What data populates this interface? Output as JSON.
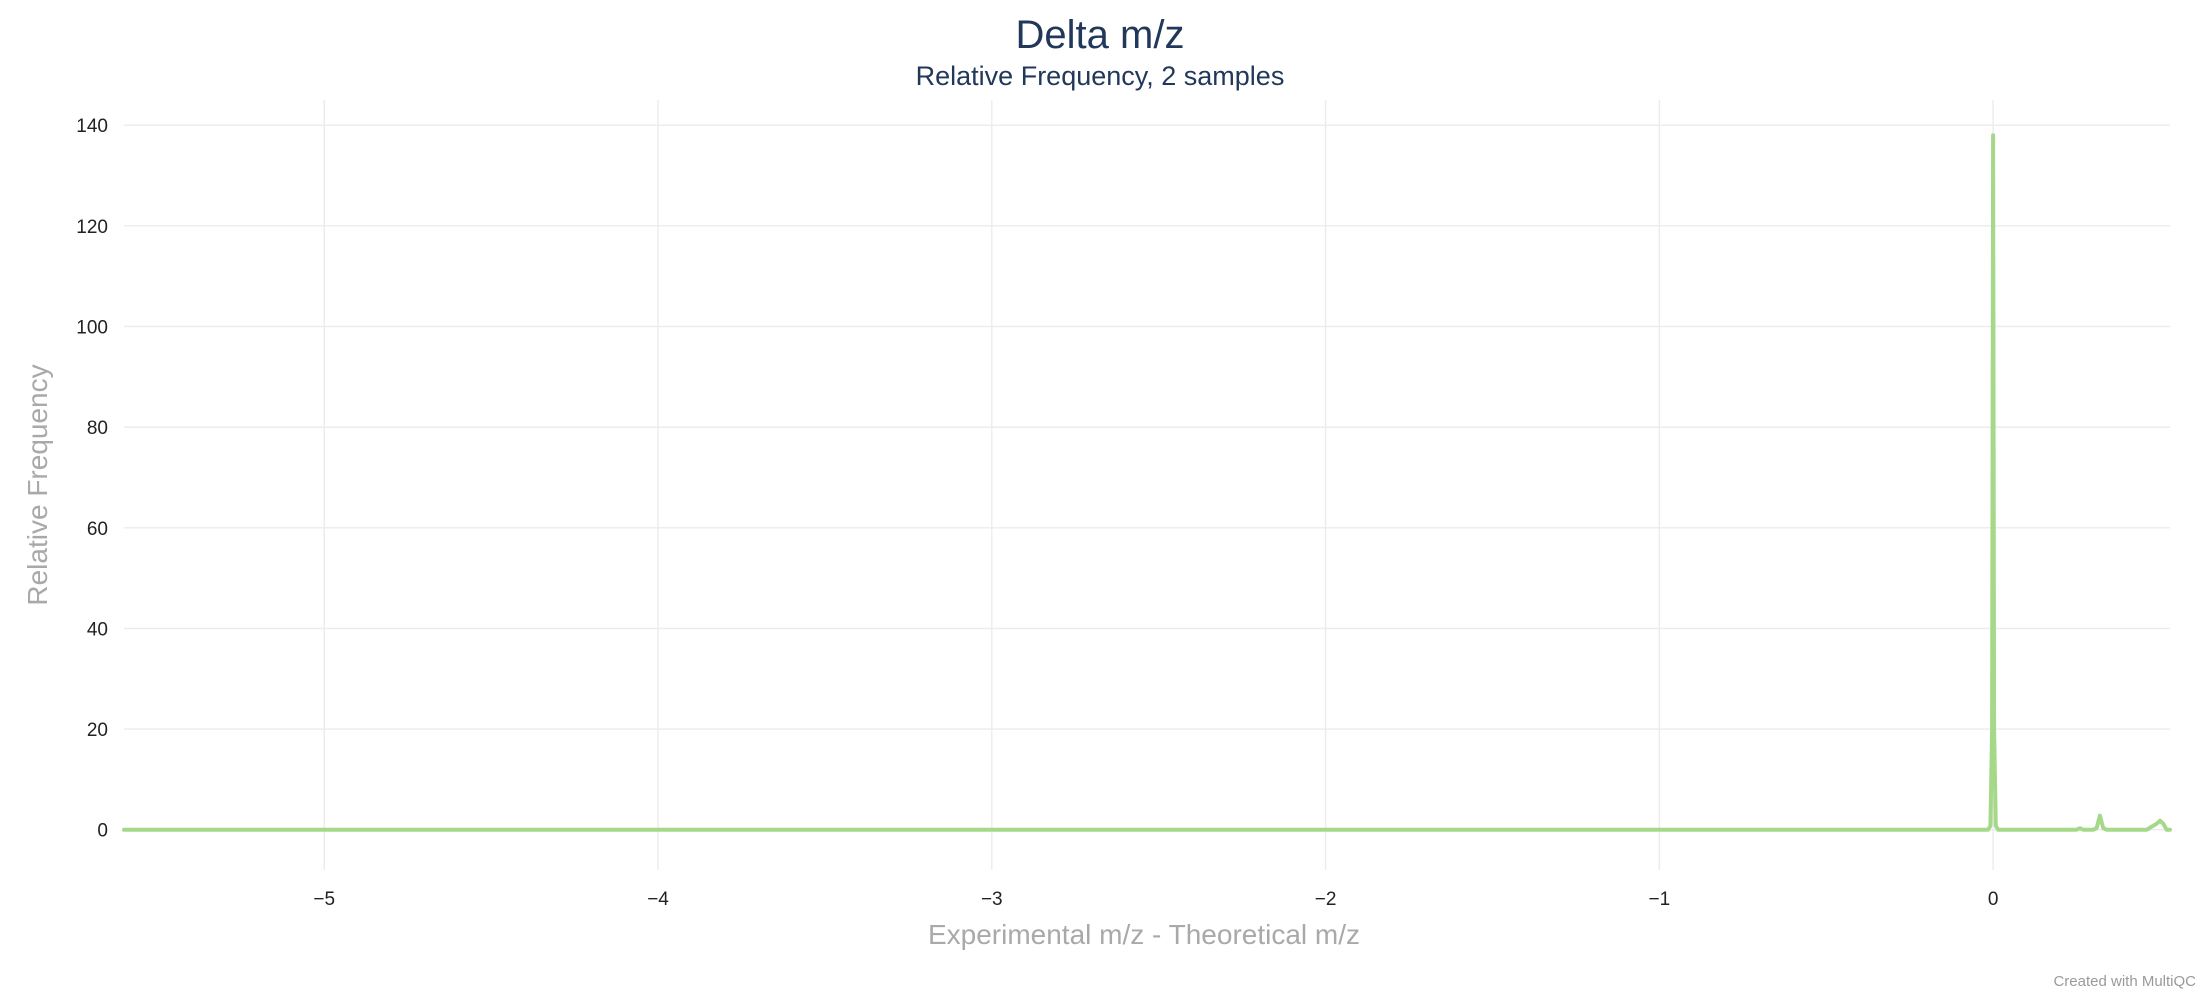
{
  "chart_data": {
    "type": "line",
    "title": "Delta m/z",
    "subtitle": "Relative Frequency, 2 samples",
    "xlabel": "Experimental m/z - Theoretical m/z",
    "ylabel": "Relative Frequency",
    "xlim": [
      -5.6,
      0.53
    ],
    "ylim": [
      -8,
      145
    ],
    "x_ticks": [
      {
        "value": -5,
        "label": "−5"
      },
      {
        "value": -4,
        "label": "−4"
      },
      {
        "value": -3,
        "label": "−3"
      },
      {
        "value": -2,
        "label": "−2"
      },
      {
        "value": -1,
        "label": "−1"
      },
      {
        "value": 0,
        "label": "0"
      }
    ],
    "y_ticks": [
      {
        "value": 0,
        "label": "0"
      },
      {
        "value": 20,
        "label": "20"
      },
      {
        "value": 40,
        "label": "40"
      },
      {
        "value": 60,
        "label": "60"
      },
      {
        "value": 80,
        "label": "80"
      },
      {
        "value": 100,
        "label": "100"
      },
      {
        "value": 120,
        "label": "120"
      },
      {
        "value": 140,
        "label": "140"
      }
    ],
    "grid": true,
    "legend": "none",
    "series": [
      {
        "color": "#a6d88a",
        "x": [
          -5.6,
          -0.015,
          -0.008,
          -0.003,
          0.0,
          0.003,
          0.008,
          0.015,
          0.25,
          0.26,
          0.27,
          0.3,
          0.31,
          0.32,
          0.33,
          0.34,
          0.35,
          0.36,
          0.4,
          0.46,
          0.49,
          0.5,
          0.51,
          0.52,
          0.53
        ],
        "y": [
          0,
          0,
          0.8,
          20,
          138,
          20,
          0.8,
          0,
          0,
          0.3,
          0,
          0,
          0.3,
          2.8,
          0.3,
          0,
          0,
          0,
          0,
          0,
          1.2,
          1.8,
          1.2,
          0,
          0
        ]
      }
    ]
  },
  "credit": "Created with MultiQC"
}
